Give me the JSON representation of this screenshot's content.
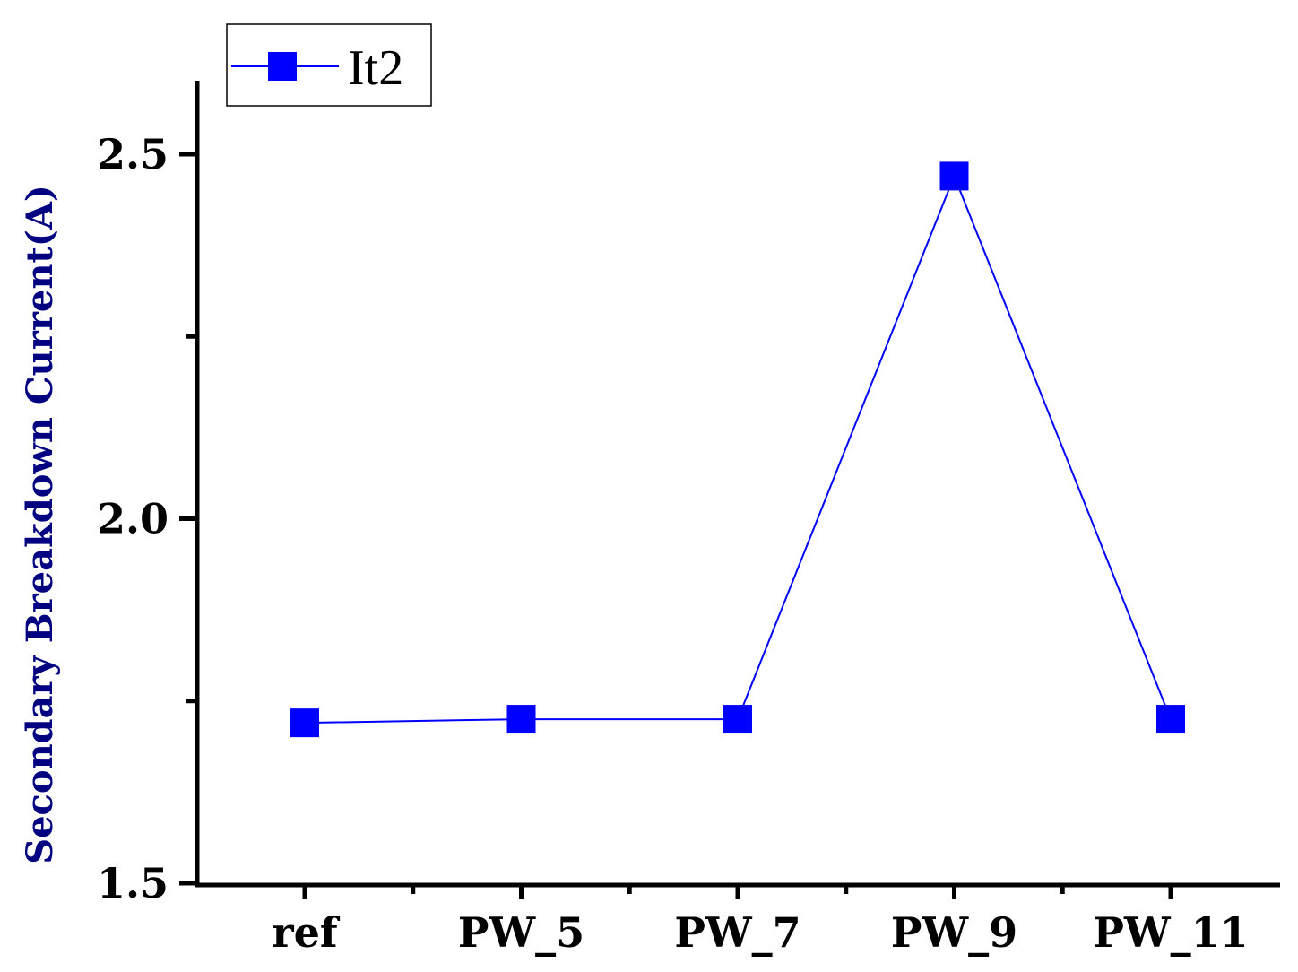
{
  "colors": {
    "series": "#0000ff",
    "axis": "#000000",
    "ylabel": "#000080"
  },
  "chart_data": {
    "type": "line",
    "categories": [
      "ref",
      "PW_5",
      "PW_7",
      "PW_9",
      "PW_11"
    ],
    "series": [
      {
        "name": "It2",
        "values": [
          1.72,
          1.725,
          1.725,
          2.47,
          1.725
        ],
        "marker": "square",
        "color": "#0000ff"
      }
    ],
    "title": "",
    "xlabel": "",
    "ylabel": "Secondary Breakdown Current(A)",
    "ylim": [
      1.5,
      2.6
    ],
    "y_major_ticks": [
      1.5,
      2.0,
      2.5
    ],
    "y_tick_labels": [
      "1.5",
      "2.0",
      "2.5"
    ],
    "y_minor_ticks": [
      1.75,
      2.25
    ],
    "grid": false,
    "legend_position": "top-left"
  }
}
